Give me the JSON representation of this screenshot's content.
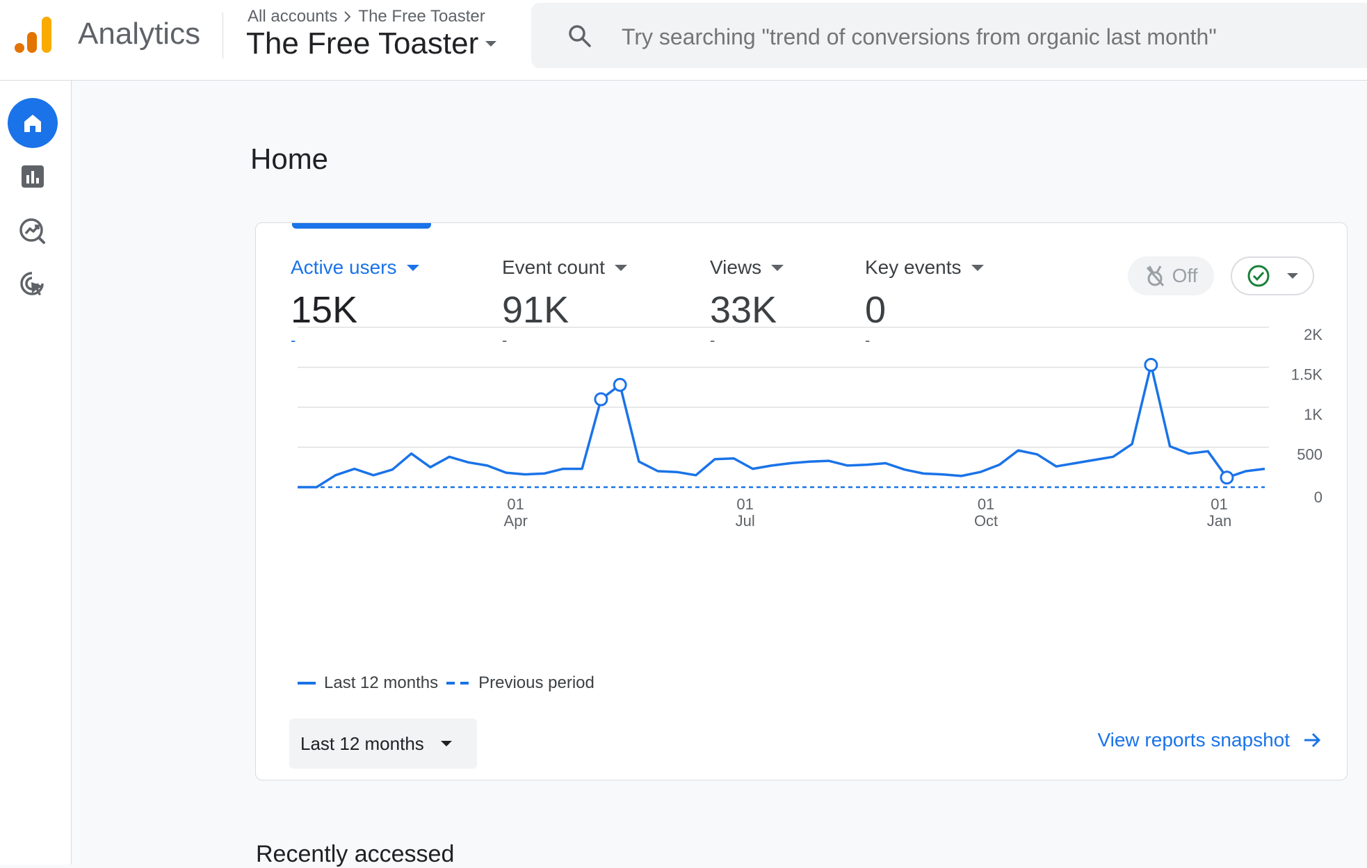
{
  "app": {
    "product_name": "Analytics",
    "breadcrumb": [
      "All accounts",
      "The Free Toaster"
    ],
    "property_name": "The Free Toaster",
    "search_placeholder": "Try searching \"trend of conversions from organic last month\""
  },
  "nav": [
    "home-icon",
    "reports-icon",
    "explore-icon",
    "advertising-icon"
  ],
  "page": {
    "title": "Home",
    "recent_title": "Recently accessed"
  },
  "metrics": [
    {
      "label": "Active users",
      "value": "15K",
      "change": "-",
      "active": true
    },
    {
      "label": "Event count",
      "value": "91K",
      "change": "-"
    },
    {
      "label": "Views",
      "value": "33K",
      "change": "-"
    },
    {
      "label": "Key events",
      "value": "0",
      "change": "-"
    }
  ],
  "controls": {
    "insights_toggle": "Off",
    "range_select": "Last 12 months",
    "snapshot_link": "View reports snapshot"
  },
  "colors": {
    "accent": "#1a73e8",
    "success": "#188038"
  },
  "chart_data": {
    "type": "line",
    "x_tick_labels": [
      [
        "01",
        "Apr"
      ],
      [
        "01",
        "Jul"
      ],
      [
        "01",
        "Oct"
      ],
      [
        "01",
        "Jan"
      ]
    ],
    "x_tick_weeks": [
      11.5,
      23.6,
      36.3,
      48.6
    ],
    "y_ticks": [
      "0",
      "500",
      "1K",
      "1.5K",
      "2K"
    ],
    "ylim": [
      0,
      2000
    ],
    "series": [
      {
        "name": "Last 12 months",
        "style": "solid",
        "values": [
          0,
          0,
          150,
          230,
          150,
          220,
          420,
          250,
          380,
          310,
          270,
          180,
          160,
          170,
          230,
          230,
          1100,
          1280,
          320,
          200,
          190,
          150,
          350,
          360,
          230,
          270,
          300,
          320,
          330,
          270,
          280,
          300,
          220,
          170,
          160,
          140,
          190,
          280,
          460,
          410,
          260,
          300,
          340,
          380,
          540,
          1530,
          510,
          420,
          450,
          120,
          200,
          230
        ],
        "markers": [
          16,
          17,
          45,
          49
        ]
      },
      {
        "name": "Previous period",
        "style": "dashed",
        "values": [
          0,
          0
        ]
      }
    ]
  }
}
